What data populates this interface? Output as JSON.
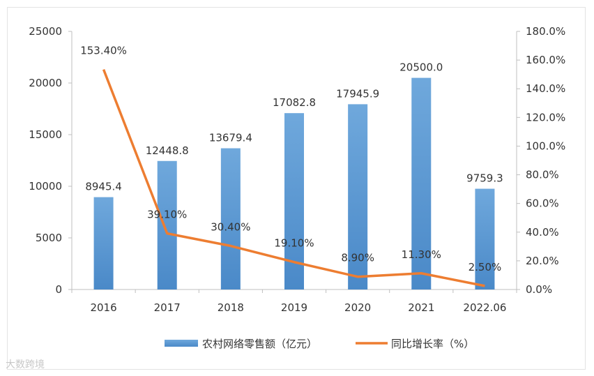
{
  "chart_data": {
    "type": "bar+line",
    "categories": [
      "2016",
      "2017",
      "2018",
      "2019",
      "2020",
      "2021",
      "2022.06"
    ],
    "series": [
      {
        "name": "农村网络零售额（亿元）",
        "type": "bar",
        "axis": "left",
        "values": [
          8945.4,
          12448.8,
          13679.4,
          17082.8,
          17945.9,
          20500.0,
          9759.3
        ],
        "labels": [
          "8945.4",
          "12448.8",
          "13679.4",
          "17082.8",
          "17945.9",
          "20500.0",
          "9759.3"
        ],
        "color": "#5b9bd5"
      },
      {
        "name": "同比增长率（%）",
        "type": "line",
        "axis": "right",
        "values": [
          153.4,
          39.1,
          30.4,
          19.1,
          8.9,
          11.3,
          2.5
        ],
        "labels": [
          "153.40%",
          "39.10%",
          "30.40%",
          "19.10%",
          "8.90%",
          "11.30%",
          "2.50%"
        ],
        "color": "#ed7d31"
      }
    ],
    "left_axis": {
      "range": [
        0,
        25000
      ],
      "ticks": [
        0,
        5000,
        10000,
        15000,
        20000,
        25000
      ],
      "tick_labels": [
        "0",
        "5000",
        "10000",
        "15000",
        "20000",
        "25000"
      ]
    },
    "right_axis": {
      "range": [
        0,
        180
      ],
      "ticks": [
        0,
        20,
        40,
        60,
        80,
        100,
        120,
        140,
        160,
        180
      ],
      "tick_labels": [
        "0.0%",
        "20.0%",
        "40.0%",
        "60.0%",
        "80.0%",
        "100.0%",
        "120.0%",
        "140.0%",
        "160.0%",
        "180.0%"
      ]
    },
    "legend_position": "bottom",
    "grid": false
  },
  "watermark": "大数跨境"
}
